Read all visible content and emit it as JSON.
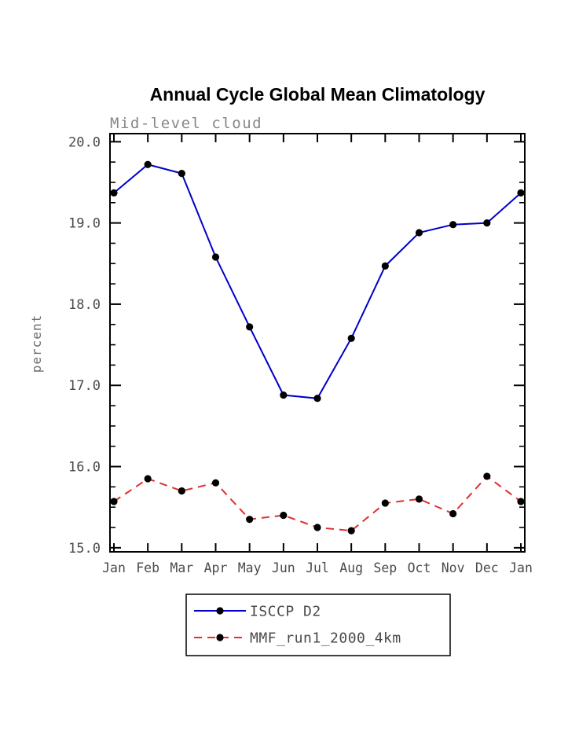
{
  "chart_data": {
    "type": "line",
    "title": "Annual Cycle Global Mean Climatology",
    "subtitle": "Mid-level cloud",
    "ylabel": "percent",
    "xlabel": "",
    "categories": [
      "Jan",
      "Feb",
      "Mar",
      "Apr",
      "May",
      "Jun",
      "Jul",
      "Aug",
      "Sep",
      "Oct",
      "Nov",
      "Dec",
      "Jan"
    ],
    "ylim": [
      14.95,
      20.1
    ],
    "y_major_ticks": [
      15.0,
      16.0,
      17.0,
      18.0,
      19.0,
      20.0
    ],
    "y_tick_labels": [
      "15.0",
      "16.0",
      "17.0",
      "18.0",
      "19.0",
      "20.0"
    ],
    "minor_tick_interval": 0.25,
    "grid": false,
    "legend_position": "bottom-center",
    "series": [
      {
        "name": "ISCCP D2",
        "color": "#0000c8",
        "line_style": "solid",
        "marker": "filled-circle",
        "marker_color": "#000000",
        "values": [
          19.37,
          19.72,
          19.61,
          18.58,
          17.72,
          16.88,
          16.84,
          17.58,
          18.47,
          18.88,
          18.98,
          19.0,
          19.37
        ]
      },
      {
        "name": "MMF_run1_2000_4km",
        "color": "#e03030",
        "line_style": "dashed",
        "marker": "filled-circle",
        "marker_color": "#000000",
        "values": [
          15.57,
          15.85,
          15.7,
          15.8,
          15.35,
          15.4,
          15.25,
          15.21,
          15.55,
          15.6,
          15.42,
          15.88,
          15.57
        ]
      }
    ]
  },
  "colors": {
    "frame": "#000000",
    "axis_text": "#4a4a4a",
    "subtitle_text": "#878787",
    "title_text": "#000000",
    "background": "#ffffff"
  }
}
